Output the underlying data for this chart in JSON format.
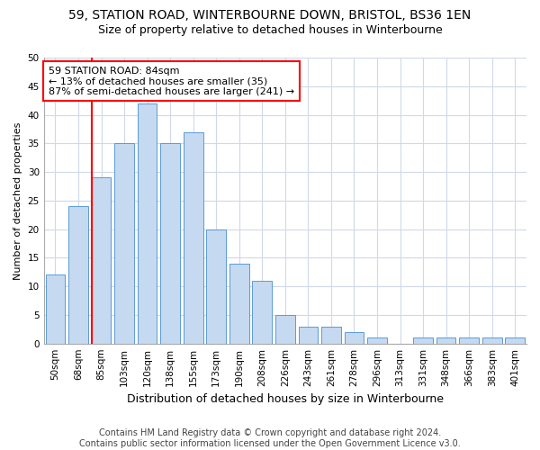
{
  "title1": "59, STATION ROAD, WINTERBOURNE DOWN, BRISTOL, BS36 1EN",
  "title2": "Size of property relative to detached houses in Winterbourne",
  "xlabel": "Distribution of detached houses by size in Winterbourne",
  "ylabel": "Number of detached properties",
  "categories": [
    "50sqm",
    "68sqm",
    "85sqm",
    "103sqm",
    "120sqm",
    "138sqm",
    "155sqm",
    "173sqm",
    "190sqm",
    "208sqm",
    "226sqm",
    "243sqm",
    "261sqm",
    "278sqm",
    "296sqm",
    "313sqm",
    "331sqm",
    "348sqm",
    "366sqm",
    "383sqm",
    "401sqm"
  ],
  "values": [
    12,
    24,
    29,
    35,
    42,
    35,
    37,
    20,
    14,
    11,
    5,
    3,
    3,
    2,
    1,
    0,
    1,
    1,
    1,
    1,
    1
  ],
  "bar_color": "#c5d9f0",
  "bar_edge_color": "#5b9bd5",
  "annotation_line1": "59 STATION ROAD: 84sqm",
  "annotation_line2": "← 13% of detached houses are smaller (35)",
  "annotation_line3": "87% of semi-detached houses are larger (241) →",
  "annotation_box_color": "white",
  "annotation_box_edge_color": "red",
  "vline_color": "red",
  "ylim": [
    0,
    50
  ],
  "yticks": [
    0,
    5,
    10,
    15,
    20,
    25,
    30,
    35,
    40,
    45,
    50
  ],
  "footer1": "Contains HM Land Registry data © Crown copyright and database right 2024.",
  "footer2": "Contains public sector information licensed under the Open Government Licence v3.0.",
  "bg_color": "#ffffff",
  "grid_color": "#d0d8ea",
  "title1_fontsize": 10,
  "title2_fontsize": 9,
  "xlabel_fontsize": 9,
  "ylabel_fontsize": 8,
  "tick_fontsize": 7.5,
  "annotation_fontsize": 8,
  "footer_fontsize": 7
}
